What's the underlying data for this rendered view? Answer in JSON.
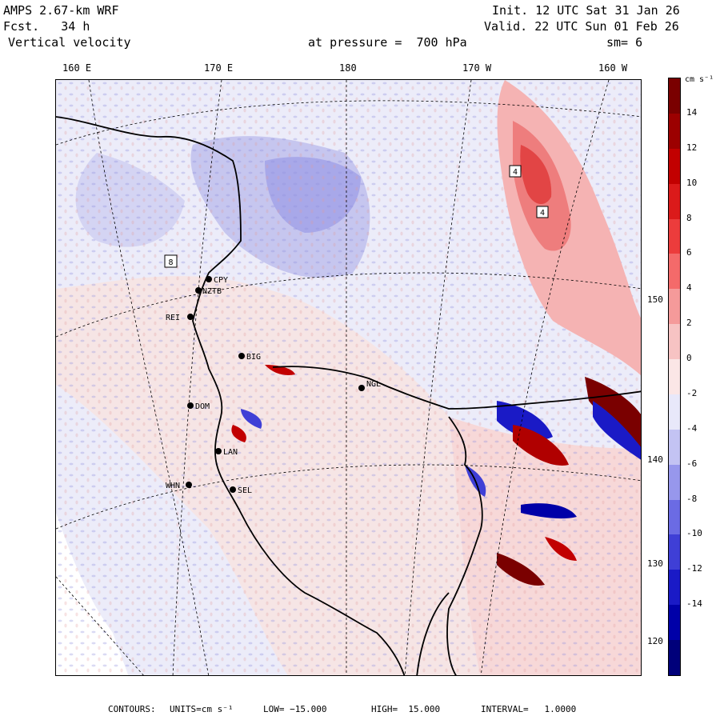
{
  "header": {
    "model": "AMPS 2.67-km WRF",
    "forecast": "Fcst.   34 h",
    "field": "Vertical velocity",
    "init": "Init. 12 UTC Sat 31 Jan 26",
    "valid": "Valid. 22 UTC Sun 01 Feb 26",
    "level": "at pressure =  700 hPa",
    "smoothing": "sm= 6"
  },
  "longitude_labels": [
    "160 E",
    "170 E",
    "180",
    "170 W",
    "160 W"
  ],
  "latitude_labels": [
    "150 W",
    "140 W",
    "130 W",
    "120 W"
  ],
  "stations": [
    {
      "code": "CPY"
    },
    {
      "code": "NZTB"
    },
    {
      "code": "REI"
    },
    {
      "code": "BIG"
    },
    {
      "code": "NGL"
    },
    {
      "code": "DOM"
    },
    {
      "code": "LAN"
    },
    {
      "code": "WHN"
    },
    {
      "code": "SEL"
    }
  ],
  "box_markers": [
    "8",
    "4",
    "4"
  ],
  "colorbar": {
    "unit": "cm s⁻¹",
    "ticks": [
      "14",
      "12",
      "10",
      "8",
      "6",
      "4",
      "2",
      "0",
      "-2",
      "-4",
      "-6",
      "-8",
      "-10",
      "-12",
      "-14"
    ],
    "colors": [
      "#7a0000",
      "#9c0000",
      "#c20000",
      "#db1a1a",
      "#ec3c3c",
      "#f46a6a",
      "#f59a9a",
      "#f7c3c3",
      "#fbe6e6",
      "#e8e8fa",
      "#c3c3f3",
      "#9797ec",
      "#6b6be4",
      "#3f3fd6",
      "#1a1ac6",
      "#0000a8",
      "#00007a"
    ]
  },
  "footer": {
    "contours": "CONTOURS:",
    "units": "UNITS=cm s⁻¹",
    "low": "LOW= −15.000",
    "high": "HIGH=  15.000",
    "interval": "INTERVAL=   1.0000"
  }
}
